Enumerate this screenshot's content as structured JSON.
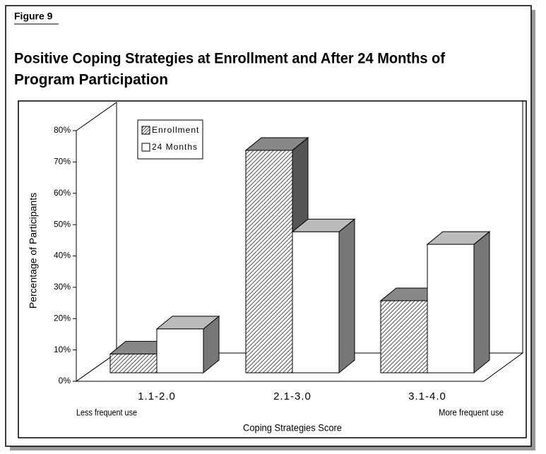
{
  "figure_label": "Figure 9",
  "chart_data": {
    "type": "bar3d",
    "title": "Positive Coping Strategies at Enrollment and After 24 Months of Program Participation",
    "title_lines": [
      "Positive Coping Strategies at Enrollment and After 24 Months of",
      "Program Participation"
    ],
    "x_label": "Coping Strategies Score",
    "y_label": "Percentage of Participants",
    "x_low_note": "Less frequent use",
    "x_high_note": "More frequent use",
    "categories": [
      "1.1-2.0",
      "2.1-3.0",
      "3.1-4.0"
    ],
    "series": [
      {
        "name": "Enrollment",
        "color": "#888888",
        "values": [
          6,
          71,
          23
        ]
      },
      {
        "name": "24 Months",
        "color": "#ffffff",
        "values": [
          14,
          45,
          41
        ]
      }
    ],
    "ylim": [
      0,
      80
    ],
    "yticks": [
      {
        "value": 0,
        "label": "0%"
      },
      {
        "value": 10,
        "label": "10%"
      },
      {
        "value": 20,
        "label": "20%"
      },
      {
        "value": 30,
        "label": "30%"
      },
      {
        "value": 40,
        "label": "40%"
      },
      {
        "value": 50,
        "label": "50%"
      },
      {
        "value": 60,
        "label": "60%"
      },
      {
        "value": 70,
        "label": "70%"
      },
      {
        "value": 80,
        "label": "80%"
      }
    ],
    "legend": "upper left"
  }
}
